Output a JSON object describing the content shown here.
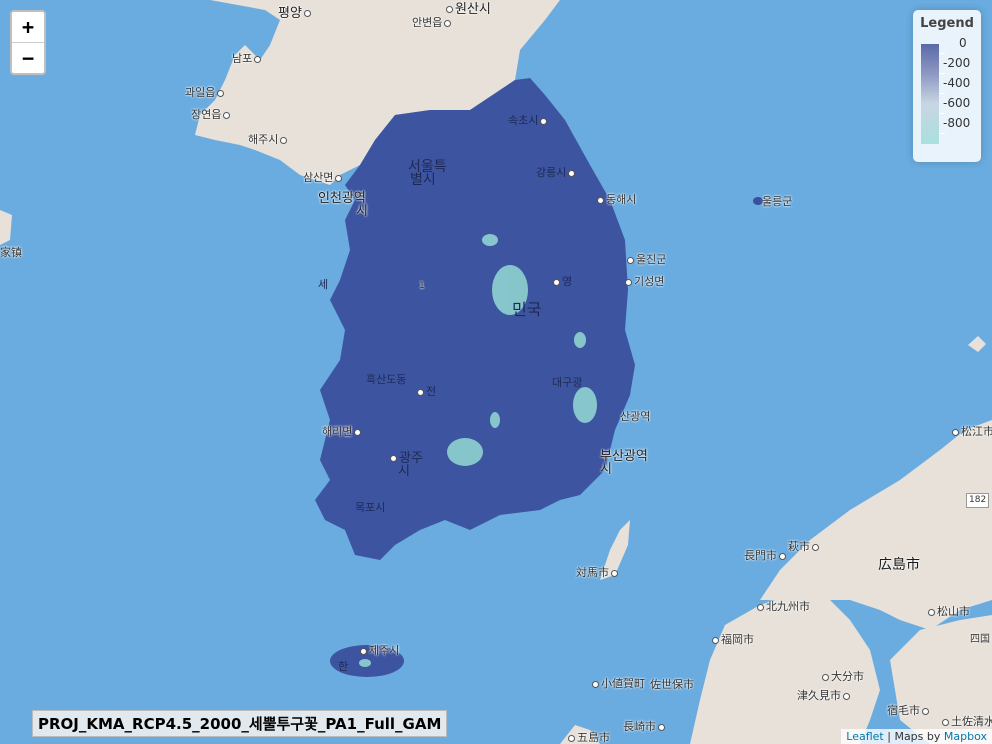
{
  "zoom": {
    "in_label": "+",
    "out_label": "−"
  },
  "legend": {
    "title": "Legend",
    "labels": [
      "0",
      "-200",
      "-400",
      "-600",
      "-800"
    ],
    "colors": {
      "high": "#5a6aa8",
      "mid": "#c8d6e2",
      "low": "#a9e0de"
    }
  },
  "map_title": "PROJ_KMA_RCP4.5_2000_세뿔투구꽃_PA1_Full_GAM",
  "attribution": {
    "leaflet": "Leaflet",
    "separator": " | Maps by ",
    "mapbox": "Mapbox"
  },
  "colors": {
    "sea": "#6aace0",
    "land": "#e7e1d9",
    "overlay": "#3b4f9c",
    "patch": "#8fd3d0"
  },
  "places": {
    "pyeongyang": "평양",
    "wonsan": "원산시",
    "anbyeon": "안변읍",
    "nampo": "남포",
    "gwail": "과일읍",
    "jangyeon": "장연읍",
    "haeju": "해주시",
    "sokcho": "속초시",
    "samsan": "삼산면",
    "seoul_1": "서울특",
    "seoul_2": "별시",
    "gangneung": "강릉시",
    "incheon_1": "인천광역",
    "incheon_2": "시",
    "donghae": "동해시",
    "ulleung": "울릉군",
    "uljin": "울진군",
    "giseong": "기성면",
    "se": "세",
    "hanguk": "민국",
    "andong": "영",
    "heuksan": "흑산도동",
    "jeon": "전",
    "daegu": "대구광",
    "ulsan": "산광역",
    "haeri": "해리면",
    "busan": "부산광역",
    "busan_si": "시",
    "gwangju_1": "광주",
    "gwangju_2": "시",
    "mokpo": "목포시",
    "jeju": "제주시",
    "seogwipo": "한",
    "tsushima": "対馬市",
    "matsue": "松江市",
    "nagato": "長門市",
    "hagi": "萩市",
    "hiroshima": "広島市",
    "kitakyushu": "北九州市",
    "matsuyama": "松山市",
    "fukuoka": "福岡市",
    "oita": "大分市",
    "kogaya": "小値賀町",
    "sasebo": "佐世保市",
    "tsukumi": "津久見市",
    "nagasaki": "長崎市",
    "sukumo": "宿毛市",
    "tosa": "土佐清水市",
    "goto": "五島市",
    "left_edge": "家镇",
    "shikoku": "四国",
    "route": "182",
    "road1": "1"
  }
}
